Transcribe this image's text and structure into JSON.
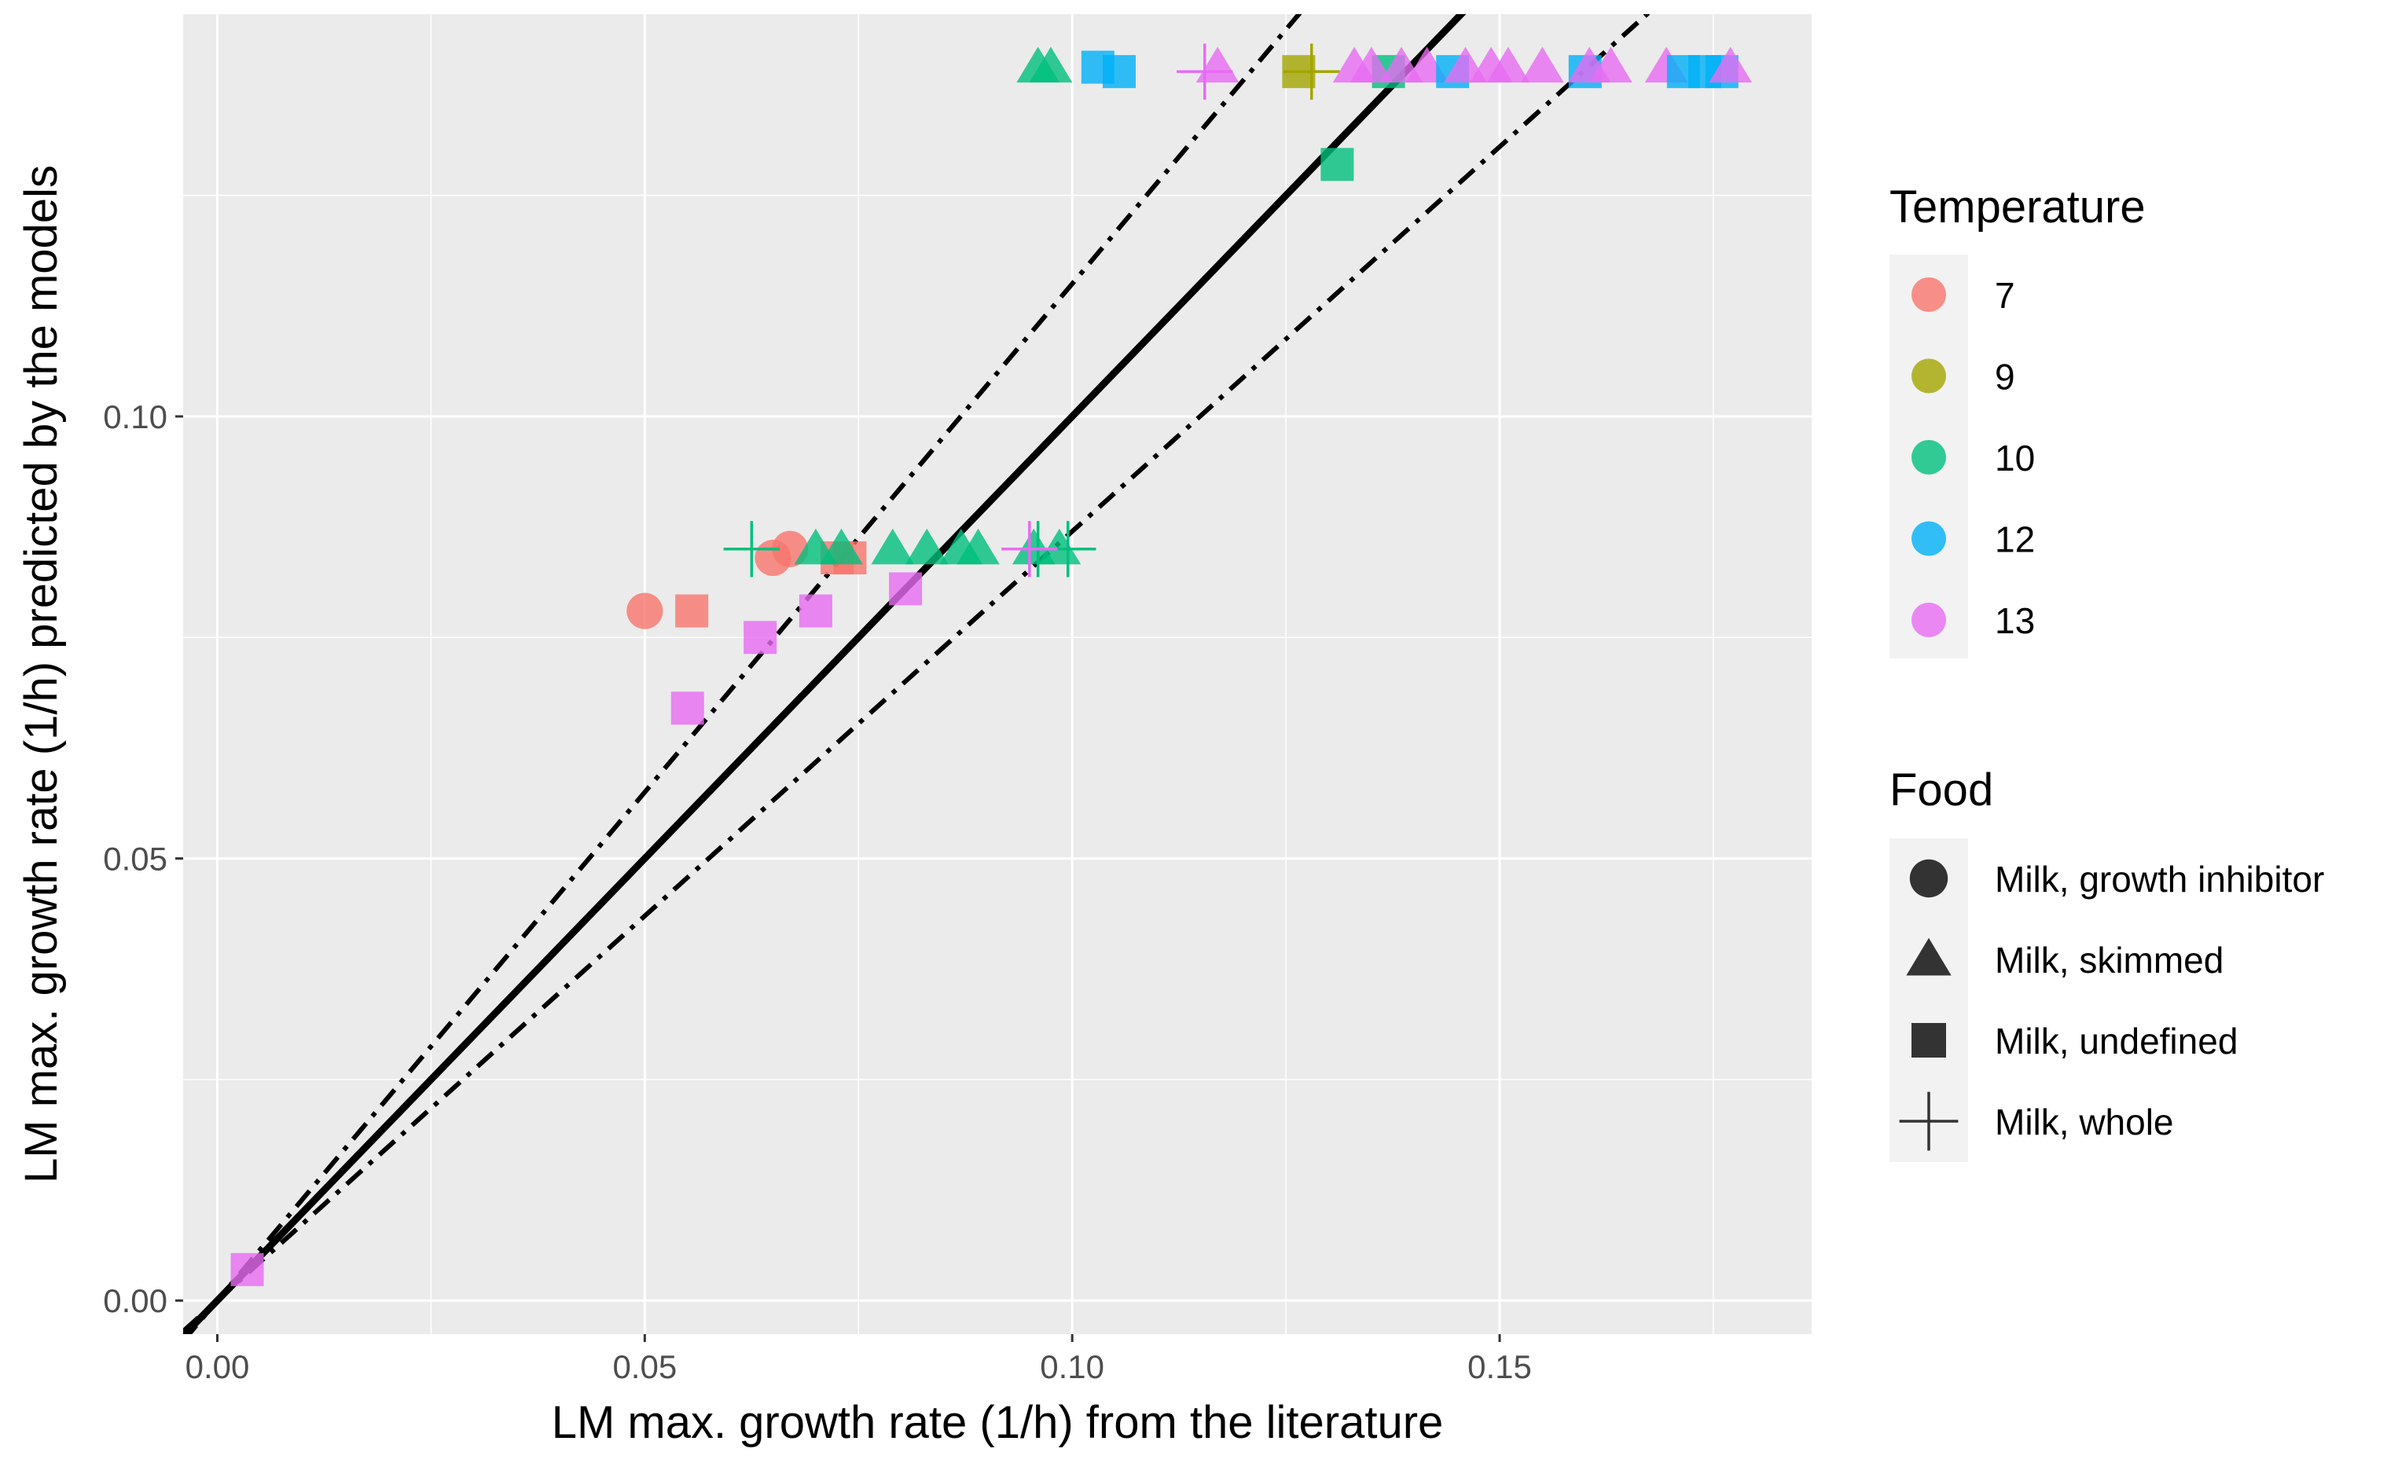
{
  "chart_data": {
    "type": "scatter",
    "title": "",
    "xlabel": "LM max. growth rate (1/h) from the literature",
    "ylabel": "LM max. growth rate (1/h) predicted by the models",
    "xlim": [
      -0.004,
      0.1865
    ],
    "ylim": [
      -0.0038,
      0.1455
    ],
    "x_ticks": [
      0.0,
      0.05,
      0.1,
      0.15
    ],
    "x_tick_labels": [
      "0.00",
      "0.05",
      "0.10",
      "0.15"
    ],
    "y_ticks": [
      0.0,
      0.05,
      0.1
    ],
    "y_tick_labels": [
      "0.00",
      "0.05",
      "0.10"
    ],
    "grid": true,
    "reference_lines": [
      {
        "name": "identity",
        "slope": 1.0,
        "style": "solid"
      },
      {
        "name": "upper bound",
        "slope": 1.15,
        "style": "dashdot"
      },
      {
        "name": "lower bound",
        "slope": 0.87,
        "style": "dashdot"
      }
    ],
    "legend_temperature": {
      "title": "Temperature",
      "entries": [
        {
          "label": "7",
          "color": "#F8766D"
        },
        {
          "label": "9",
          "color": "#A3A500"
        },
        {
          "label": "10",
          "color": "#00BF7D"
        },
        {
          "label": "12",
          "color": "#00B0F6"
        },
        {
          "label": "13",
          "color": "#E76BF3"
        }
      ]
    },
    "legend_food": {
      "title": "Food",
      "entries": [
        {
          "label": "Milk, growth inhibitor",
          "shape": "circle"
        },
        {
          "label": "Milk, skimmed",
          "shape": "triangle"
        },
        {
          "label": "Milk, undefined",
          "shape": "square"
        },
        {
          "label": "Milk, whole",
          "shape": "plus"
        }
      ]
    },
    "points": [
      {
        "x": 0.0035,
        "y": 0.0035,
        "temp": "13",
        "food": "Milk, undefined"
      },
      {
        "x": 0.05,
        "y": 0.078,
        "temp": "7",
        "food": "Milk, growth inhibitor"
      },
      {
        "x": 0.0555,
        "y": 0.078,
        "temp": "7",
        "food": "Milk, undefined"
      },
      {
        "x": 0.055,
        "y": 0.067,
        "temp": "13",
        "food": "Milk, undefined"
      },
      {
        "x": 0.0635,
        "y": 0.075,
        "temp": "13",
        "food": "Milk, undefined"
      },
      {
        "x": 0.07,
        "y": 0.078,
        "temp": "13",
        "food": "Milk, undefined"
      },
      {
        "x": 0.0805,
        "y": 0.0805,
        "temp": "13",
        "food": "Milk, undefined"
      },
      {
        "x": 0.065,
        "y": 0.084,
        "temp": "7",
        "food": "Milk, growth inhibitor"
      },
      {
        "x": 0.067,
        "y": 0.085,
        "temp": "7",
        "food": "Milk, growth inhibitor"
      },
      {
        "x": 0.074,
        "y": 0.084,
        "temp": "7",
        "food": "Milk, undefined"
      },
      {
        "x": 0.0725,
        "y": 0.084,
        "temp": "7",
        "food": "Milk, undefined"
      },
      {
        "x": 0.0625,
        "y": 0.085,
        "temp": "10",
        "food": "Milk, whole"
      },
      {
        "x": 0.07,
        "y": 0.085,
        "temp": "10",
        "food": "Milk, skimmed"
      },
      {
        "x": 0.073,
        "y": 0.085,
        "temp": "10",
        "food": "Milk, skimmed"
      },
      {
        "x": 0.079,
        "y": 0.085,
        "temp": "10",
        "food": "Milk, skimmed"
      },
      {
        "x": 0.083,
        "y": 0.085,
        "temp": "10",
        "food": "Milk, skimmed"
      },
      {
        "x": 0.087,
        "y": 0.085,
        "temp": "10",
        "food": "Milk, skimmed"
      },
      {
        "x": 0.089,
        "y": 0.085,
        "temp": "10",
        "food": "Milk, skimmed"
      },
      {
        "x": 0.0955,
        "y": 0.085,
        "temp": "10",
        "food": "Milk, skimmed"
      },
      {
        "x": 0.0985,
        "y": 0.085,
        "temp": "10",
        "food": "Milk, skimmed"
      },
      {
        "x": 0.096,
        "y": 0.085,
        "temp": "10",
        "food": "Milk, whole"
      },
      {
        "x": 0.0995,
        "y": 0.085,
        "temp": "10",
        "food": "Milk, whole"
      },
      {
        "x": 0.095,
        "y": 0.085,
        "temp": "13",
        "food": "Milk, whole"
      },
      {
        "x": 0.131,
        "y": 0.1285,
        "temp": "10",
        "food": "Milk, undefined"
      },
      {
        "x": 0.096,
        "y": 0.1395,
        "temp": "10",
        "food": "Milk, skimmed"
      },
      {
        "x": 0.0975,
        "y": 0.1395,
        "temp": "10",
        "food": "Milk, skimmed"
      },
      {
        "x": 0.103,
        "y": 0.1395,
        "temp": "12",
        "food": "Milk, undefined"
      },
      {
        "x": 0.1055,
        "y": 0.139,
        "temp": "12",
        "food": "Milk, undefined"
      },
      {
        "x": 0.117,
        "y": 0.1395,
        "temp": "13",
        "food": "Milk, skimmed"
      },
      {
        "x": 0.1155,
        "y": 0.139,
        "temp": "13",
        "food": "Milk, whole"
      },
      {
        "x": 0.1265,
        "y": 0.139,
        "temp": "9",
        "food": "Milk, undefined"
      },
      {
        "x": 0.128,
        "y": 0.139,
        "temp": "9",
        "food": "Milk, whole"
      },
      {
        "x": 0.137,
        "y": 0.139,
        "temp": "10",
        "food": "Milk, undefined"
      },
      {
        "x": 0.133,
        "y": 0.1395,
        "temp": "13",
        "food": "Milk, skimmed"
      },
      {
        "x": 0.135,
        "y": 0.1395,
        "temp": "13",
        "food": "Milk, skimmed"
      },
      {
        "x": 0.1385,
        "y": 0.1395,
        "temp": "13",
        "food": "Milk, skimmed"
      },
      {
        "x": 0.1415,
        "y": 0.1395,
        "temp": "13",
        "food": "Milk, skimmed"
      },
      {
        "x": 0.1445,
        "y": 0.139,
        "temp": "12",
        "food": "Milk, undefined"
      },
      {
        "x": 0.146,
        "y": 0.1395,
        "temp": "13",
        "food": "Milk, skimmed"
      },
      {
        "x": 0.149,
        "y": 0.1395,
        "temp": "13",
        "food": "Milk, skimmed"
      },
      {
        "x": 0.151,
        "y": 0.1395,
        "temp": "13",
        "food": "Milk, skimmed"
      },
      {
        "x": 0.155,
        "y": 0.1395,
        "temp": "13",
        "food": "Milk, skimmed"
      },
      {
        "x": 0.16,
        "y": 0.139,
        "temp": "12",
        "food": "Milk, undefined"
      },
      {
        "x": 0.1605,
        "y": 0.1395,
        "temp": "13",
        "food": "Milk, skimmed"
      },
      {
        "x": 0.163,
        "y": 0.1395,
        "temp": "13",
        "food": "Milk, skimmed"
      },
      {
        "x": 0.1695,
        "y": 0.1395,
        "temp": "13",
        "food": "Milk, skimmed"
      },
      {
        "x": 0.1715,
        "y": 0.139,
        "temp": "12",
        "food": "Milk, undefined"
      },
      {
        "x": 0.174,
        "y": 0.139,
        "temp": "12",
        "food": "Milk, undefined"
      },
      {
        "x": 0.176,
        "y": 0.139,
        "temp": "12",
        "food": "Milk, undefined"
      },
      {
        "x": 0.177,
        "y": 0.1395,
        "temp": "13",
        "food": "Milk, skimmed"
      }
    ]
  }
}
